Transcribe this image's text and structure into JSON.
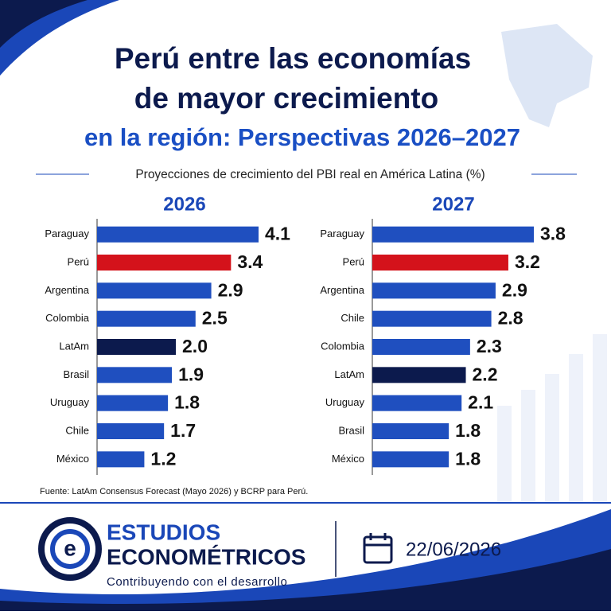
{
  "header": {
    "title": [
      "Perú entre las economías",
      "de mayor crecimiento",
      "en la región: Perspectivas 2026–2027"
    ],
    "subtitle": "Proyecciones de crecimiento del PBI real en América Latina (%)"
  },
  "chart_data": [
    {
      "type": "bar",
      "orientation": "horizontal",
      "title": "2026",
      "categories": [
        "Paraguay",
        "Perú",
        "Argentina",
        "Colombia",
        "LatAm",
        "Brasil",
        "Uruguay",
        "Chile",
        "México"
      ],
      "series": [
        {
          "values": [
            4.1,
            3.4,
            2.9,
            2.5,
            2.0,
            1.9,
            1.8,
            1.7,
            1.2
          ],
          "value_labels": [
            "4.1",
            "3.4",
            "2.9",
            "2.5",
            "2.0",
            "1.9",
            "1.8",
            "1.7",
            "1.2"
          ],
          "colors": [
            "#1f4fbf",
            "#d4121b",
            "#1f4fbf",
            "#1f4fbf",
            "#0c1a4d",
            "#1f4fbf",
            "#1f4fbf",
            "#1f4fbf",
            "#1f4fbf"
          ]
        }
      ]
    },
    {
      "type": "bar",
      "orientation": "horizontal",
      "title": "2027",
      "categories": [
        "Paraguay",
        "Perú",
        "Argentina",
        "Chile",
        "Colombia",
        "LatAm",
        "Uruguay",
        "Brasil",
        "México"
      ],
      "series": [
        {
          "values": [
            3.8,
            3.2,
            2.9,
            2.8,
            2.3,
            2.2,
            2.1,
            1.8,
            1.8
          ],
          "colors": [
            "#1f4fbf",
            "#d4121b",
            "#1f4fbf",
            "#1f4fbf",
            "#1f4fbf",
            "#0c1a4d",
            "#1f4fbf",
            "#1f4fbf",
            "#1f4fbf"
          ]
        }
      ]
    }
  ],
  "source": "Fuente: LatAm Consensus Forecast (Mayo 2026) y BCRP para Perú.",
  "footer": {
    "brand": [
      "ESTUDIOS",
      "ECONOMÉTRICOS"
    ],
    "tagline": "Contribuyendo con el desarrollo",
    "date": "22/06/2026"
  }
}
